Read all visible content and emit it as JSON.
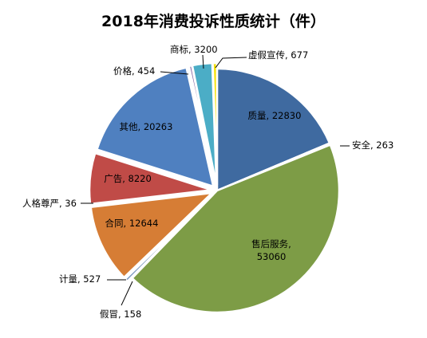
{
  "chart_data": {
    "type": "pie",
    "title": "2018年消费投诉性质统计（件）",
    "slices": [
      {
        "name": "质量",
        "value": 22830,
        "label": "质量, 22830",
        "color": "#3f6aa0",
        "explode": false,
        "inside": true
      },
      {
        "name": "安全",
        "value": 263,
        "label": "安全, 263",
        "color": "#9a4040",
        "explode": false,
        "inside": false
      },
      {
        "name": "售后服务",
        "value": 53060,
        "label": "售后服务,\n53060",
        "color": "#7d9c46",
        "explode": false,
        "inside": true
      },
      {
        "name": "假冒",
        "value": 158,
        "label": "假冒, 158",
        "color": "#3f78b5",
        "explode": true,
        "inside": false
      },
      {
        "name": "计量",
        "value": 527,
        "label": "计量, 527",
        "color": "#7c98c0",
        "explode": true,
        "inside": false
      },
      {
        "name": "合同",
        "value": 12644,
        "label": "合同, 12644",
        "color": "#d67d35",
        "explode": true,
        "inside": true
      },
      {
        "name": "人格尊严",
        "value": 36,
        "label": "人格尊严, 36",
        "color": "#3a5f8a",
        "explode": true,
        "inside": false
      },
      {
        "name": "广告",
        "value": 8220,
        "label": "广告, 8220",
        "color": "#c04b47",
        "explode": true,
        "inside": true
      },
      {
        "name": "其他",
        "value": 20263,
        "label": "其他, 20263",
        "color": "#4f80c0",
        "explode": true,
        "inside": true
      },
      {
        "name": "价格",
        "value": 454,
        "label": "价格, 454",
        "color": "#8064a2",
        "explode": true,
        "inside": false
      },
      {
        "name": "商标",
        "value": 3200,
        "label": "商标, 3200",
        "color": "#4badc6",
        "explode": true,
        "inside": false
      },
      {
        "name": "虚假宣传",
        "value": 677,
        "label": "虚假宣传, 677",
        "color": "#f5e20a",
        "explode": true,
        "inside": false
      }
    ]
  }
}
